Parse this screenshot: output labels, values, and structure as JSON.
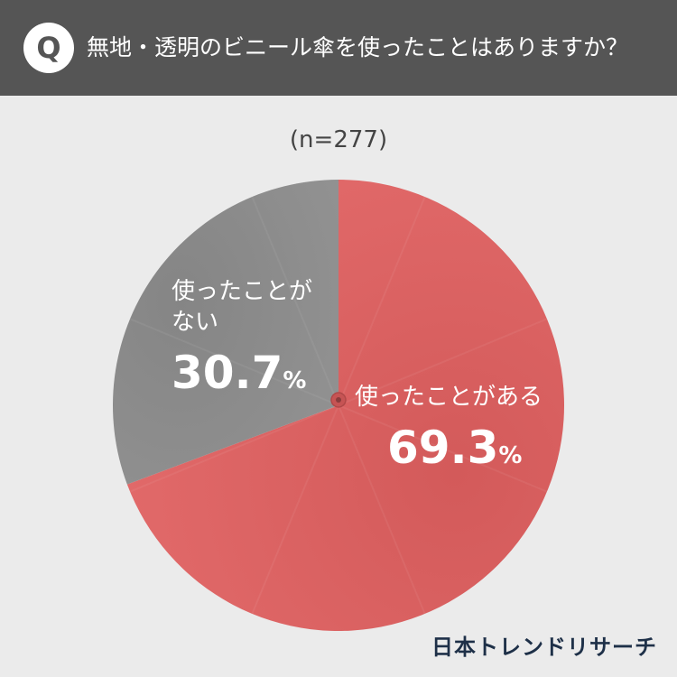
{
  "header": {
    "badge": "Q",
    "question": "無地・透明のビニール傘を使ったことはありますか？"
  },
  "sample_size": "(n=277)",
  "chart_data": {
    "type": "pie",
    "title": "無地・透明のビニール傘を使ったことはありますか？",
    "n": 277,
    "slices": [
      {
        "label": "使ったことがある",
        "value": 69.3,
        "color": "#dd6464"
      },
      {
        "label": "使ったことがない",
        "value": 30.7,
        "color": "#8a8a8a"
      }
    ],
    "value_unit": "%"
  },
  "labels": {
    "no_line1": "使ったことが",
    "no_line2": "ない",
    "no_value": "30.7",
    "yes_line1": "使ったことがある",
    "yes_value": "69.3",
    "unit": "%"
  },
  "colors": {
    "header_bg": "#555555",
    "background": "#ebebeb",
    "yes": "#dd6464",
    "no": "#8a8a8a"
  },
  "logo": "日本トレンドリサーチ"
}
